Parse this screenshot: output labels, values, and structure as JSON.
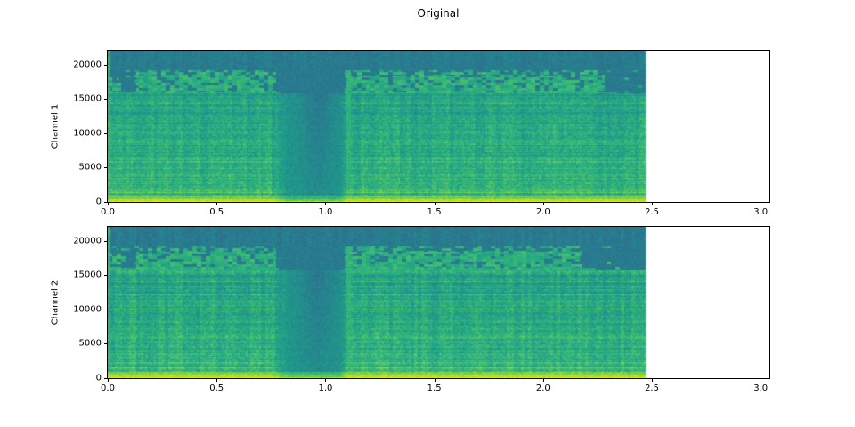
{
  "figure": {
    "title": "Original"
  },
  "chart_data": [
    {
      "type": "heatmap",
      "subtype": "spectrogram",
      "title": "Original",
      "xlabel": "",
      "ylabel": "Channel 1",
      "colormap": "viridis",
      "xlim": [
        0,
        3.04
      ],
      "ylim": [
        0,
        22050
      ],
      "x_tick_values": [
        0,
        0.5,
        1.0,
        1.5,
        2.0,
        2.5,
        3.0
      ],
      "x_tick_labels": [
        "0.0",
        "0.5",
        "1.0",
        "1.5",
        "2.0",
        "2.5",
        "3.0"
      ],
      "y_tick_values": [
        0,
        5000,
        10000,
        15000,
        20000
      ],
      "y_tick_labels": [
        "0",
        "5000",
        "10000",
        "15000",
        "20000"
      ],
      "signal_duration_s": 2.47,
      "silence_interval_s": [
        0.77,
        1.1
      ],
      "low_bright_band_hz": [
        0,
        900
      ],
      "block_artifact_band_hz": [
        15800,
        19200
      ],
      "dark_top_band_hz": [
        19200,
        22050
      ],
      "high_band_end_s": 2.28
    },
    {
      "type": "heatmap",
      "subtype": "spectrogram",
      "title": "Original",
      "xlabel": "",
      "ylabel": "Channel 2",
      "colormap": "viridis",
      "xlim": [
        0,
        3.04
      ],
      "ylim": [
        0,
        22050
      ],
      "x_tick_values": [
        0,
        0.5,
        1.0,
        1.5,
        2.0,
        2.5,
        3.0
      ],
      "x_tick_labels": [
        "0.0",
        "0.5",
        "1.0",
        "1.5",
        "2.0",
        "2.5",
        "3.0"
      ],
      "y_tick_values": [
        0,
        5000,
        10000,
        15000,
        20000
      ],
      "y_tick_labels": [
        "0",
        "5000",
        "10000",
        "15000",
        "20000"
      ],
      "signal_duration_s": 2.47,
      "silence_interval_s": [
        0.77,
        1.1
      ],
      "low_bright_band_hz": [
        0,
        900
      ],
      "block_artifact_band_hz": [
        15800,
        19200
      ],
      "dark_top_band_hz": [
        19200,
        22050
      ],
      "high_band_end_s": 2.18
    }
  ]
}
